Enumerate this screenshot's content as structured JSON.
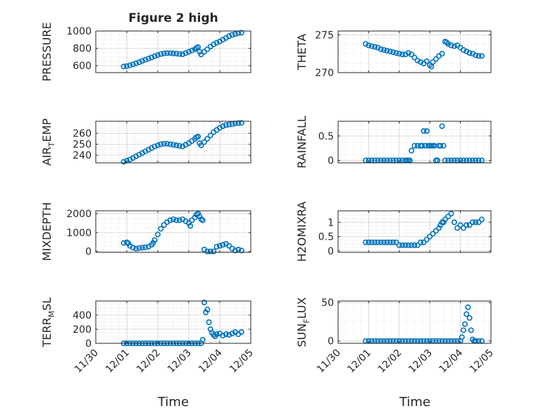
{
  "figure": {
    "title": "Figure 2 high",
    "x_tick_labels": [
      "11/30",
      "12/01",
      "12/02",
      "12/03",
      "12/04",
      "12/05"
    ],
    "x_label": "Time",
    "marker_color": "#0072BD",
    "grid_color": "#d9d9d9",
    "axis_color": "#262626"
  },
  "chart_data": [
    {
      "type": "scatter",
      "ylabel": "PRESSURE",
      "ylim": [
        520,
        1000
      ],
      "yticks": [
        600,
        800,
        1000
      ],
      "ytick_labels": [
        "600",
        "800",
        "1000"
      ],
      "xlim": [
        0,
        5
      ],
      "grid": true,
      "x": [
        0.9,
        1.0,
        1.1,
        1.2,
        1.3,
        1.4,
        1.5,
        1.6,
        1.7,
        1.8,
        1.9,
        2.0,
        2.1,
        2.2,
        2.3,
        2.4,
        2.5,
        2.6,
        2.7,
        2.8,
        2.9,
        3.0,
        3.1,
        3.2,
        3.25,
        3.3,
        3.35,
        3.4,
        3.5,
        3.6,
        3.7,
        3.8,
        3.9,
        4.0,
        4.1,
        4.2,
        4.3,
        4.4,
        4.5,
        4.6,
        4.7
      ],
      "y": [
        590,
        595,
        605,
        615,
        628,
        640,
        655,
        668,
        682,
        695,
        710,
        722,
        735,
        742,
        745,
        745,
        742,
        740,
        735,
        732,
        745,
        760,
        775,
        790,
        805,
        815,
        760,
        730,
        760,
        790,
        820,
        845,
        865,
        880,
        900,
        920,
        940,
        955,
        965,
        975,
        980
      ]
    },
    {
      "type": "scatter",
      "ylabel": "THETA",
      "ylim": [
        270,
        275.5
      ],
      "yticks": [
        270,
        275
      ],
      "ytick_labels": [
        "270",
        "275"
      ],
      "xlim": [
        0,
        5
      ],
      "grid": true,
      "x": [
        0.9,
        1.0,
        1.1,
        1.2,
        1.3,
        1.4,
        1.5,
        1.6,
        1.7,
        1.8,
        1.9,
        2.0,
        2.1,
        2.2,
        2.3,
        2.4,
        2.5,
        2.6,
        2.7,
        2.8,
        2.9,
        3.0,
        3.05,
        3.1,
        3.2,
        3.3,
        3.4,
        3.5,
        3.55,
        3.6,
        3.7,
        3.8,
        3.9,
        4.0,
        4.1,
        4.2,
        4.3,
        4.4,
        4.5,
        4.6,
        4.7
      ],
      "y": [
        273.8,
        273.6,
        273.5,
        273.4,
        273.3,
        273.1,
        273.0,
        272.9,
        272.8,
        272.7,
        272.6,
        272.5,
        272.4,
        272.4,
        272.6,
        272.4,
        272.0,
        271.6,
        271.4,
        271.2,
        271.5,
        271.0,
        270.8,
        271.4,
        271.8,
        272.2,
        272.5,
        274.1,
        274.0,
        273.8,
        273.6,
        273.5,
        273.6,
        273.3,
        273.0,
        272.8,
        272.6,
        272.5,
        272.3,
        272.2,
        272.2
      ]
    },
    {
      "type": "scatter",
      "ylabel": "AIR_TEMP",
      "ylim": [
        233,
        271
      ],
      "yticks": [
        240,
        250,
        260
      ],
      "ytick_labels": [
        "240",
        "250",
        "260"
      ],
      "xlim": [
        0,
        5
      ],
      "grid": true,
      "x": [
        0.9,
        1.0,
        1.1,
        1.2,
        1.3,
        1.4,
        1.5,
        1.6,
        1.7,
        1.8,
        1.9,
        2.0,
        2.1,
        2.2,
        2.3,
        2.4,
        2.5,
        2.6,
        2.7,
        2.8,
        2.9,
        3.0,
        3.1,
        3.2,
        3.25,
        3.3,
        3.35,
        3.4,
        3.5,
        3.6,
        3.7,
        3.8,
        3.9,
        4.0,
        4.1,
        4.2,
        4.3,
        4.4,
        4.5,
        4.6,
        4.7
      ],
      "y": [
        234,
        235,
        236,
        237.5,
        239,
        240.5,
        242,
        243.5,
        245,
        246.5,
        248,
        249,
        250,
        250.5,
        250.5,
        250,
        249.5,
        249,
        248.5,
        248,
        249.5,
        251,
        253,
        255,
        256.5,
        257,
        251,
        249,
        252,
        255,
        258,
        261,
        263,
        265,
        266.5,
        267.5,
        268,
        268.5,
        269,
        269.3,
        269.5
      ]
    },
    {
      "type": "scatter",
      "ylabel": "RAINFALL",
      "ylim": [
        -0.05,
        0.8
      ],
      "yticks": [
        0,
        0.5
      ],
      "ytick_labels": [
        "0",
        "0.5"
      ],
      "xlim": [
        0,
        5
      ],
      "grid": true,
      "x": [
        0.9,
        1.0,
        1.1,
        1.2,
        1.3,
        1.4,
        1.5,
        1.6,
        1.7,
        1.8,
        1.9,
        2.0,
        2.1,
        2.2,
        2.25,
        2.3,
        2.35,
        2.4,
        2.5,
        2.6,
        2.7,
        2.75,
        2.8,
        2.85,
        2.9,
        2.95,
        3.0,
        3.05,
        3.1,
        3.15,
        3.2,
        3.25,
        3.3,
        3.35,
        3.4,
        3.45,
        3.5,
        3.6,
        3.7,
        3.8,
        3.9,
        4.0,
        4.1,
        4.2,
        4.3,
        4.4,
        4.5,
        4.6,
        4.7
      ],
      "y": [
        0,
        0,
        0,
        0,
        0,
        0,
        0,
        0,
        0,
        0,
        0,
        0,
        0,
        0,
        0,
        0,
        0,
        0.2,
        0.3,
        0.3,
        0.3,
        0.3,
        0.6,
        0.3,
        0.6,
        0.3,
        0.3,
        0.3,
        0.3,
        0.3,
        0.0,
        0.0,
        0.3,
        0.3,
        0.7,
        0.3,
        0,
        0,
        0,
        0,
        0,
        0,
        0,
        0,
        0,
        0,
        0,
        0,
        0
      ]
    },
    {
      "type": "scatter",
      "ylabel": "MIXDEPTH",
      "ylim": [
        -50,
        2150
      ],
      "yticks": [
        0,
        1000,
        2000
      ],
      "ytick_labels": [
        "0",
        "1000",
        "2000"
      ],
      "xlim": [
        0,
        5
      ],
      "grid": true,
      "x": [
        0.9,
        1.0,
        1.05,
        1.1,
        1.2,
        1.3,
        1.4,
        1.5,
        1.6,
        1.7,
        1.8,
        1.85,
        1.9,
        2.0,
        2.1,
        2.2,
        2.3,
        2.4,
        2.5,
        2.6,
        2.7,
        2.8,
        2.9,
        3.0,
        3.05,
        3.1,
        3.2,
        3.25,
        3.3,
        3.35,
        3.4,
        3.45,
        3.5,
        3.6,
        3.7,
        3.8,
        3.9,
        4.0,
        4.1,
        4.2,
        4.3,
        4.4,
        4.5,
        4.6,
        4.7
      ],
      "y": [
        450,
        480,
        430,
        300,
        200,
        150,
        180,
        200,
        220,
        250,
        350,
        450,
        600,
        900,
        1200,
        1400,
        1550,
        1650,
        1700,
        1650,
        1650,
        1700,
        1600,
        1500,
        1350,
        1650,
        1800,
        1950,
        2000,
        1850,
        1700,
        1650,
        100,
        0,
        0,
        0,
        250,
        300,
        350,
        400,
        300,
        150,
        50,
        100,
        50
      ]
    },
    {
      "type": "scatter",
      "ylabel": "H2OMIXRA",
      "ylim": [
        -0.05,
        1.4
      ],
      "yticks": [
        0,
        0.5,
        1
      ],
      "ytick_labels": [
        "0",
        "0.5",
        "1"
      ],
      "xlim": [
        0,
        5
      ],
      "grid": true,
      "x": [
        0.9,
        1.0,
        1.1,
        1.2,
        1.3,
        1.4,
        1.5,
        1.6,
        1.7,
        1.8,
        1.9,
        2.0,
        2.1,
        2.2,
        2.3,
        2.4,
        2.5,
        2.6,
        2.7,
        2.8,
        2.9,
        3.0,
        3.1,
        3.2,
        3.3,
        3.35,
        3.4,
        3.45,
        3.5,
        3.6,
        3.7,
        3.8,
        3.9,
        4.0,
        4.1,
        4.2,
        4.3,
        4.4,
        4.5,
        4.6,
        4.7
      ],
      "y": [
        0.3,
        0.3,
        0.3,
        0.3,
        0.3,
        0.3,
        0.3,
        0.3,
        0.3,
        0.3,
        0.3,
        0.2,
        0.2,
        0.2,
        0.2,
        0.2,
        0.2,
        0.2,
        0.3,
        0.3,
        0.4,
        0.5,
        0.6,
        0.7,
        0.8,
        0.9,
        1.0,
        1.0,
        1.1,
        1.2,
        1.3,
        1.0,
        0.8,
        0.9,
        0.8,
        0.9,
        0.9,
        1.0,
        1.0,
        1.0,
        1.1
      ]
    },
    {
      "type": "scatter",
      "ylabel": "TERR_MSL",
      "ylim": [
        0,
        600
      ],
      "yticks": [
        0,
        200,
        400
      ],
      "ytick_labels": [
        "0",
        "200",
        "400"
      ],
      "xlim": [
        0,
        5
      ],
      "grid": true,
      "x": [
        0.9,
        1.0,
        1.1,
        1.2,
        1.3,
        1.4,
        1.5,
        1.6,
        1.7,
        1.8,
        1.9,
        2.0,
        2.1,
        2.2,
        2.3,
        2.4,
        2.5,
        2.6,
        2.7,
        2.8,
        2.9,
        3.0,
        3.1,
        3.2,
        3.3,
        3.4,
        3.45,
        3.5,
        3.55,
        3.6,
        3.65,
        3.7,
        3.75,
        3.8,
        3.85,
        3.9,
        4.0,
        4.1,
        4.2,
        4.3,
        4.4,
        4.5,
        4.6,
        4.7
      ],
      "y": [
        0,
        0,
        0,
        0,
        0,
        0,
        0,
        0,
        0,
        0,
        0,
        0,
        0,
        0,
        0,
        0,
        0,
        0,
        0,
        0,
        0,
        0,
        0,
        0,
        0,
        0,
        50,
        580,
        440,
        480,
        300,
        200,
        150,
        120,
        100,
        130,
        140,
        110,
        130,
        120,
        140,
        160,
        130,
        160
      ]
    },
    {
      "type": "scatter",
      "ylabel": "SUN_FLUX",
      "ylim": [
        -3,
        52
      ],
      "yticks": [
        0,
        50
      ],
      "ytick_labels": [
        "0",
        "50"
      ],
      "xlim": [
        0,
        5
      ],
      "grid": true,
      "x": [
        0.9,
        1.0,
        1.1,
        1.2,
        1.3,
        1.4,
        1.5,
        1.6,
        1.7,
        1.8,
        1.9,
        2.0,
        2.1,
        2.2,
        2.3,
        2.4,
        2.5,
        2.6,
        2.7,
        2.8,
        2.9,
        3.0,
        3.1,
        3.2,
        3.3,
        3.4,
        3.5,
        3.6,
        3.7,
        3.8,
        3.9,
        4.0,
        4.05,
        4.1,
        4.15,
        4.2,
        4.25,
        4.3,
        4.35,
        4.4,
        4.45,
        4.5,
        4.6,
        4.7
      ],
      "y": [
        0,
        0,
        0,
        0,
        0,
        0,
        0,
        0,
        0,
        0,
        0,
        0,
        0,
        0,
        0,
        0,
        0,
        0,
        0,
        0,
        0,
        0,
        0,
        0,
        0,
        0,
        0,
        0,
        0,
        0,
        0,
        0,
        5,
        14,
        22,
        35,
        44,
        30,
        14,
        2,
        0,
        0,
        0,
        0
      ]
    }
  ]
}
